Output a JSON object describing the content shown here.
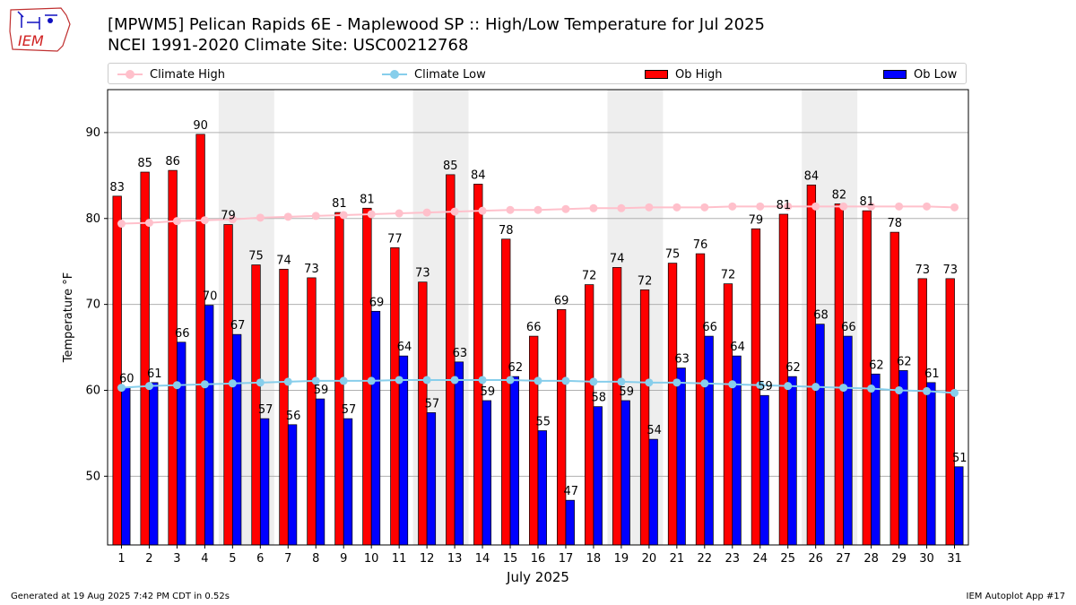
{
  "logo": {
    "text": "IEM"
  },
  "header": {
    "title_line1": "[MPWM5] Pelican Rapids 6E - Maplewood SP :: High/Low Temperature for Jul 2025",
    "title_line2": "NCEI 1991-2020 Climate Site: USC00212768"
  },
  "legend": {
    "climate_high": "Climate High",
    "climate_low": "Climate Low",
    "ob_high": "Ob High",
    "ob_low": "Ob Low"
  },
  "footer": {
    "generated": "Generated at 19 Aug 2025 7:42 PM CDT in 0.52s",
    "app": "IEM Autoplot App #17"
  },
  "colors": {
    "ob_high": "#ff0000",
    "ob_low": "#0000ff",
    "climate_high": "#ffc0cb",
    "climate_low": "#87ceeb",
    "weekend_shade": "#eeeeee"
  },
  "chart_data": {
    "type": "bar",
    "xlabel": "July 2025",
    "ylabel": "Temperature °F",
    "ylim": [
      42,
      95
    ],
    "yticks": [
      50,
      60,
      70,
      80,
      90
    ],
    "grid": "horizontal",
    "legend_position": "top",
    "categories": [
      "1",
      "2",
      "3",
      "4",
      "5",
      "6",
      "7",
      "8",
      "9",
      "10",
      "11",
      "12",
      "13",
      "14",
      "15",
      "16",
      "17",
      "18",
      "19",
      "20",
      "21",
      "22",
      "23",
      "24",
      "25",
      "26",
      "27",
      "28",
      "29",
      "30",
      "31"
    ],
    "shaded_days": [
      [
        5,
        6
      ],
      [
        12,
        13
      ],
      [
        19,
        20
      ],
      [
        26,
        27
      ]
    ],
    "series": [
      {
        "name": "Ob High",
        "kind": "bar",
        "values": [
          83,
          85,
          86,
          90,
          79,
          75,
          74,
          73,
          81,
          81,
          77,
          73,
          85,
          84,
          78,
          66,
          69,
          72,
          74,
          72,
          75,
          76,
          72,
          79,
          81,
          84,
          82,
          81,
          78,
          73,
          73
        ],
        "heights": [
          82.6,
          85.4,
          85.6,
          89.8,
          79.3,
          74.6,
          74.1,
          73.1,
          80.7,
          81.2,
          76.6,
          72.6,
          85.1,
          84.0,
          77.6,
          66.3,
          69.4,
          72.3,
          74.3,
          71.7,
          74.8,
          75.9,
          72.4,
          78.8,
          80.5,
          83.9,
          81.7,
          80.9,
          78.4,
          73.0,
          73.0
        ]
      },
      {
        "name": "Ob Low",
        "kind": "bar",
        "values": [
          60,
          61,
          66,
          70,
          67,
          57,
          56,
          59,
          57,
          69,
          64,
          57,
          63,
          59,
          62,
          55,
          47,
          58,
          59,
          54,
          63,
          66,
          64,
          59,
          62,
          68,
          66,
          62,
          62,
          61,
          51
        ],
        "heights": [
          60.3,
          60.9,
          65.6,
          69.9,
          66.5,
          56.7,
          56.0,
          59.0,
          56.7,
          69.2,
          64.0,
          57.4,
          63.3,
          58.8,
          61.6,
          55.3,
          47.2,
          58.1,
          58.8,
          54.3,
          62.6,
          66.3,
          64.0,
          59.4,
          61.6,
          67.7,
          66.3,
          61.9,
          62.3,
          60.9,
          51.1
        ]
      },
      {
        "name": "Climate High",
        "kind": "line",
        "values": [
          79.4,
          79.5,
          79.7,
          79.8,
          79.9,
          80.1,
          80.2,
          80.3,
          80.4,
          80.5,
          80.6,
          80.7,
          80.8,
          80.9,
          81.0,
          81.0,
          81.1,
          81.2,
          81.2,
          81.3,
          81.3,
          81.3,
          81.4,
          81.4,
          81.4,
          81.4,
          81.4,
          81.4,
          81.4,
          81.4,
          81.3
        ]
      },
      {
        "name": "Climate Low",
        "kind": "line",
        "values": [
          60.3,
          60.5,
          60.6,
          60.7,
          60.8,
          60.9,
          61.0,
          61.1,
          61.1,
          61.1,
          61.2,
          61.2,
          61.2,
          61.2,
          61.2,
          61.1,
          61.1,
          61.0,
          61.0,
          60.9,
          60.9,
          60.8,
          60.7,
          60.6,
          60.5,
          60.4,
          60.3,
          60.2,
          60.0,
          59.9,
          59.7
        ]
      }
    ]
  }
}
